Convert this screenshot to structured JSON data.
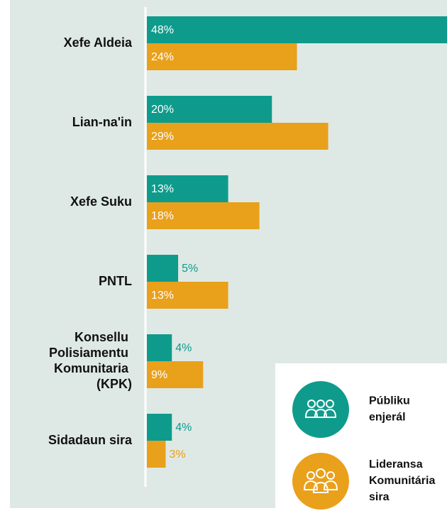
{
  "chart_data": {
    "type": "bar",
    "orientation": "horizontal",
    "categories": [
      "Xefe Aldeia",
      "Lian-na'in",
      "Xefe Suku",
      "PNTL",
      "Konsellu Polisiamentu Komunitaria (KPK)",
      "Sidadaun sira"
    ],
    "series": [
      {
        "name": "Públiku enjerál",
        "color": "#0e9b8c",
        "values": [
          48,
          20,
          13,
          5,
          4,
          4
        ],
        "value_labels": [
          "48%",
          "20%",
          "13%",
          "5%",
          "4%",
          "4%"
        ]
      },
      {
        "name": "Lideransa Komunitária sira",
        "color": "#e9a01b",
        "values": [
          24,
          29,
          18,
          13,
          9,
          3
        ],
        "value_labels": [
          "24%",
          "29%",
          "18%",
          "13%",
          "9%",
          "3%"
        ]
      }
    ],
    "xlim": [
      0,
      48
    ]
  }
}
